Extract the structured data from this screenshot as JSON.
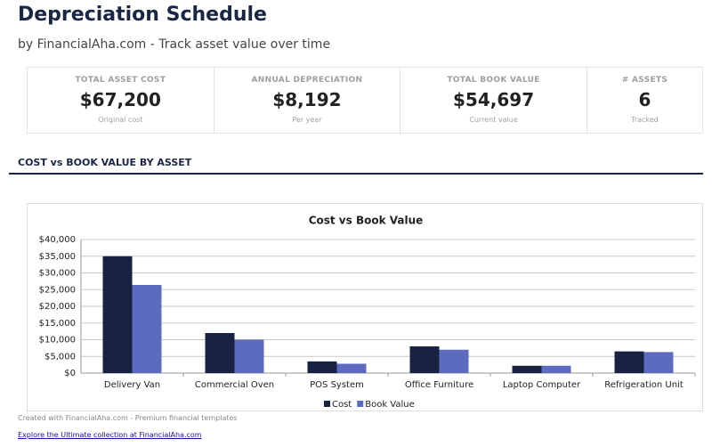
{
  "header": {
    "title": "Depreciation Schedule",
    "subtitle": "by FinancialAha.com - Track asset value over time"
  },
  "kpis": [
    {
      "label": "TOTAL ASSET COST",
      "value": "$67,200",
      "note": "Original cost"
    },
    {
      "label": "ANNUAL DEPRECIATION",
      "value": "$8,192",
      "note": "Per year"
    },
    {
      "label": "TOTAL BOOK VALUE",
      "value": "$54,697",
      "note": "Current value"
    },
    {
      "label": "# ASSETS",
      "value": "6",
      "note": "Tracked"
    }
  ],
  "section_title": "COST vs BOOK VALUE BY ASSET",
  "chart_data": {
    "type": "bar",
    "title": "Cost vs Book Value",
    "categories": [
      "Delivery Van",
      "Commercial Oven",
      "POS System",
      "Office Furniture",
      "Laptop Computer",
      "Refrigeration Unit"
    ],
    "series": [
      {
        "name": "Cost",
        "color": "#172340",
        "values": [
          35000,
          12000,
          3500,
          8000,
          2200,
          6500
        ]
      },
      {
        "name": "Book Value",
        "color": "#5c6bc0",
        "values": [
          26400,
          10000,
          2800,
          7000,
          2200,
          6300
        ]
      }
    ],
    "ylim": [
      0,
      40000
    ],
    "yticks": [
      {
        "value": 0,
        "label": "$0"
      },
      {
        "value": 5000,
        "label": "$5,000"
      },
      {
        "value": 10000,
        "label": "$10,000"
      },
      {
        "value": 15000,
        "label": "$15,000"
      },
      {
        "value": 20000,
        "label": "$20,000"
      },
      {
        "value": 25000,
        "label": "$25,000"
      },
      {
        "value": 30000,
        "label": "$30,000"
      },
      {
        "value": 35000,
        "label": "$35,000"
      },
      {
        "value": 40000,
        "label": "$40,000"
      }
    ],
    "grid": true,
    "legend": "bottom"
  },
  "footer": {
    "credit": "Created with FinancialAha.com - Premium financial templates",
    "link": "Explore the Ultimate collection at FinancialAha.com"
  }
}
